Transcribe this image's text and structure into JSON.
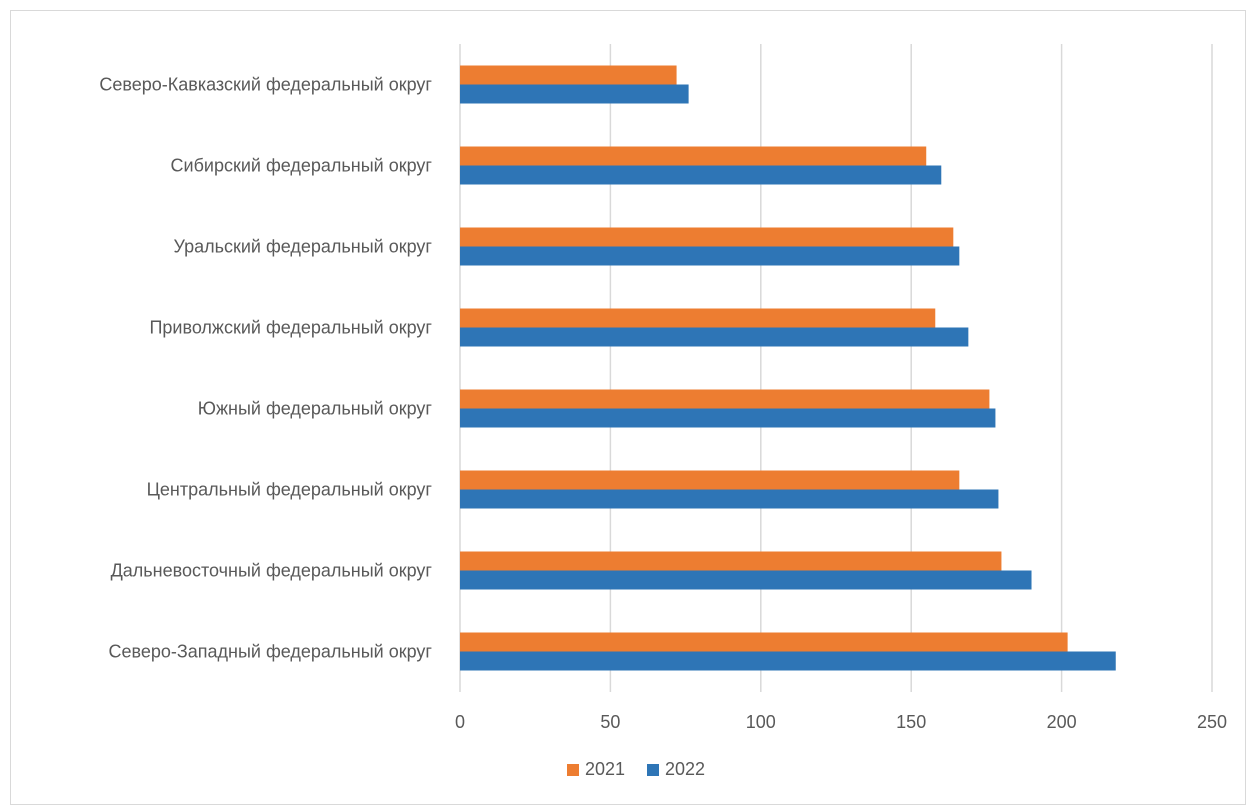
{
  "chart_data": {
    "type": "bar",
    "orientation": "horizontal",
    "categories": [
      "Северо-Кавказский федеральный округ",
      "Сибирский федеральный округ",
      "Уральский федеральный округ",
      "Приволжский федеральный округ",
      "Южный федеральный округ",
      "Центральный федеральный округ",
      "Дальневосточный федеральный округ",
      "Северо-Западный федеральный округ"
    ],
    "series": [
      {
        "name": "2021",
        "color": "#ED7D31",
        "values": [
          72,
          155,
          164,
          158,
          176,
          166,
          180,
          202
        ]
      },
      {
        "name": "2022",
        "color": "#2E75B6",
        "values": [
          76,
          160,
          166,
          169,
          178,
          179,
          190,
          218
        ]
      }
    ],
    "xlim": [
      0,
      250
    ],
    "xticks": [
      0,
      50,
      100,
      150,
      200,
      250
    ],
    "xtick_labels": [
      "0",
      "50",
      "100",
      "150",
      "200",
      "250"
    ],
    "grid": "vertical",
    "legend": "bottom-center"
  }
}
